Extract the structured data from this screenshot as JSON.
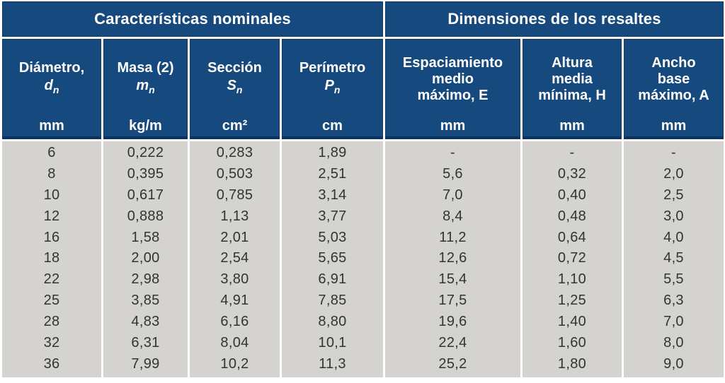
{
  "table": {
    "sections": [
      {
        "title": "Características nominales"
      },
      {
        "title": "Dimensiones de los resaltes"
      }
    ],
    "columns": [
      {
        "name_lines": [
          "Diámetro,"
        ],
        "symbol_base": "d",
        "symbol_sub": "n",
        "unit": "mm"
      },
      {
        "name_lines": [
          "Masa (2)"
        ],
        "symbol_base": "m",
        "symbol_sub": "n",
        "unit": "kg/m"
      },
      {
        "name_lines": [
          "Sección"
        ],
        "symbol_base": "S",
        "symbol_sub": "n",
        "unit": "cm²"
      },
      {
        "name_lines": [
          "Perímetro"
        ],
        "symbol_base": "P",
        "symbol_sub": "n",
        "unit": "cm"
      },
      {
        "name_lines": [
          "Espaciamiento",
          "medio",
          "máximo, E"
        ],
        "unit": "mm"
      },
      {
        "name_lines": [
          "Altura",
          "media",
          "mínima, H"
        ],
        "unit": "mm"
      },
      {
        "name_lines": [
          "Ancho",
          "base",
          "máximo, A"
        ],
        "unit": "mm"
      }
    ],
    "rows": [
      [
        "6",
        "0,222",
        "0,283",
        "1,89",
        "-",
        "-",
        "-"
      ],
      [
        "8",
        "0,395",
        "0,503",
        "2,51",
        "5,6",
        "0,32",
        "2,0"
      ],
      [
        "10",
        "0,617",
        "0,785",
        "3,14",
        "7,0",
        "0,40",
        "2,5"
      ],
      [
        "12",
        "0,888",
        "1,13",
        "3,77",
        "8,4",
        "0,48",
        "3,0"
      ],
      [
        "16",
        "1,58",
        "2,01",
        "5,03",
        "11,2",
        "0,64",
        "4,0"
      ],
      [
        "18",
        "2,00",
        "2,54",
        "5,65",
        "12,6",
        "0,72",
        "4,5"
      ],
      [
        "22",
        "2,98",
        "3,80",
        "6,91",
        "15,4",
        "1,10",
        "5,5"
      ],
      [
        "25",
        "3,85",
        "4,91",
        "7,85",
        "17,5",
        "1,25",
        "6,3"
      ],
      [
        "28",
        "4,83",
        "6,16",
        "8,80",
        "19,6",
        "1,40",
        "7,0"
      ],
      [
        "32",
        "6,31",
        "8,04",
        "10,1",
        "22,4",
        "1,60",
        "8,0"
      ],
      [
        "36",
        "7,99",
        "10,2",
        "11,3",
        "25,2",
        "1,80",
        "9,0"
      ]
    ],
    "colors": {
      "header_bg": "#164A7E",
      "header_border": "#0B3260",
      "body_bg": "#D4D3CF",
      "grid": "#FFFFFF",
      "header_text": "#FFFFFF",
      "body_text": "#333333"
    }
  }
}
